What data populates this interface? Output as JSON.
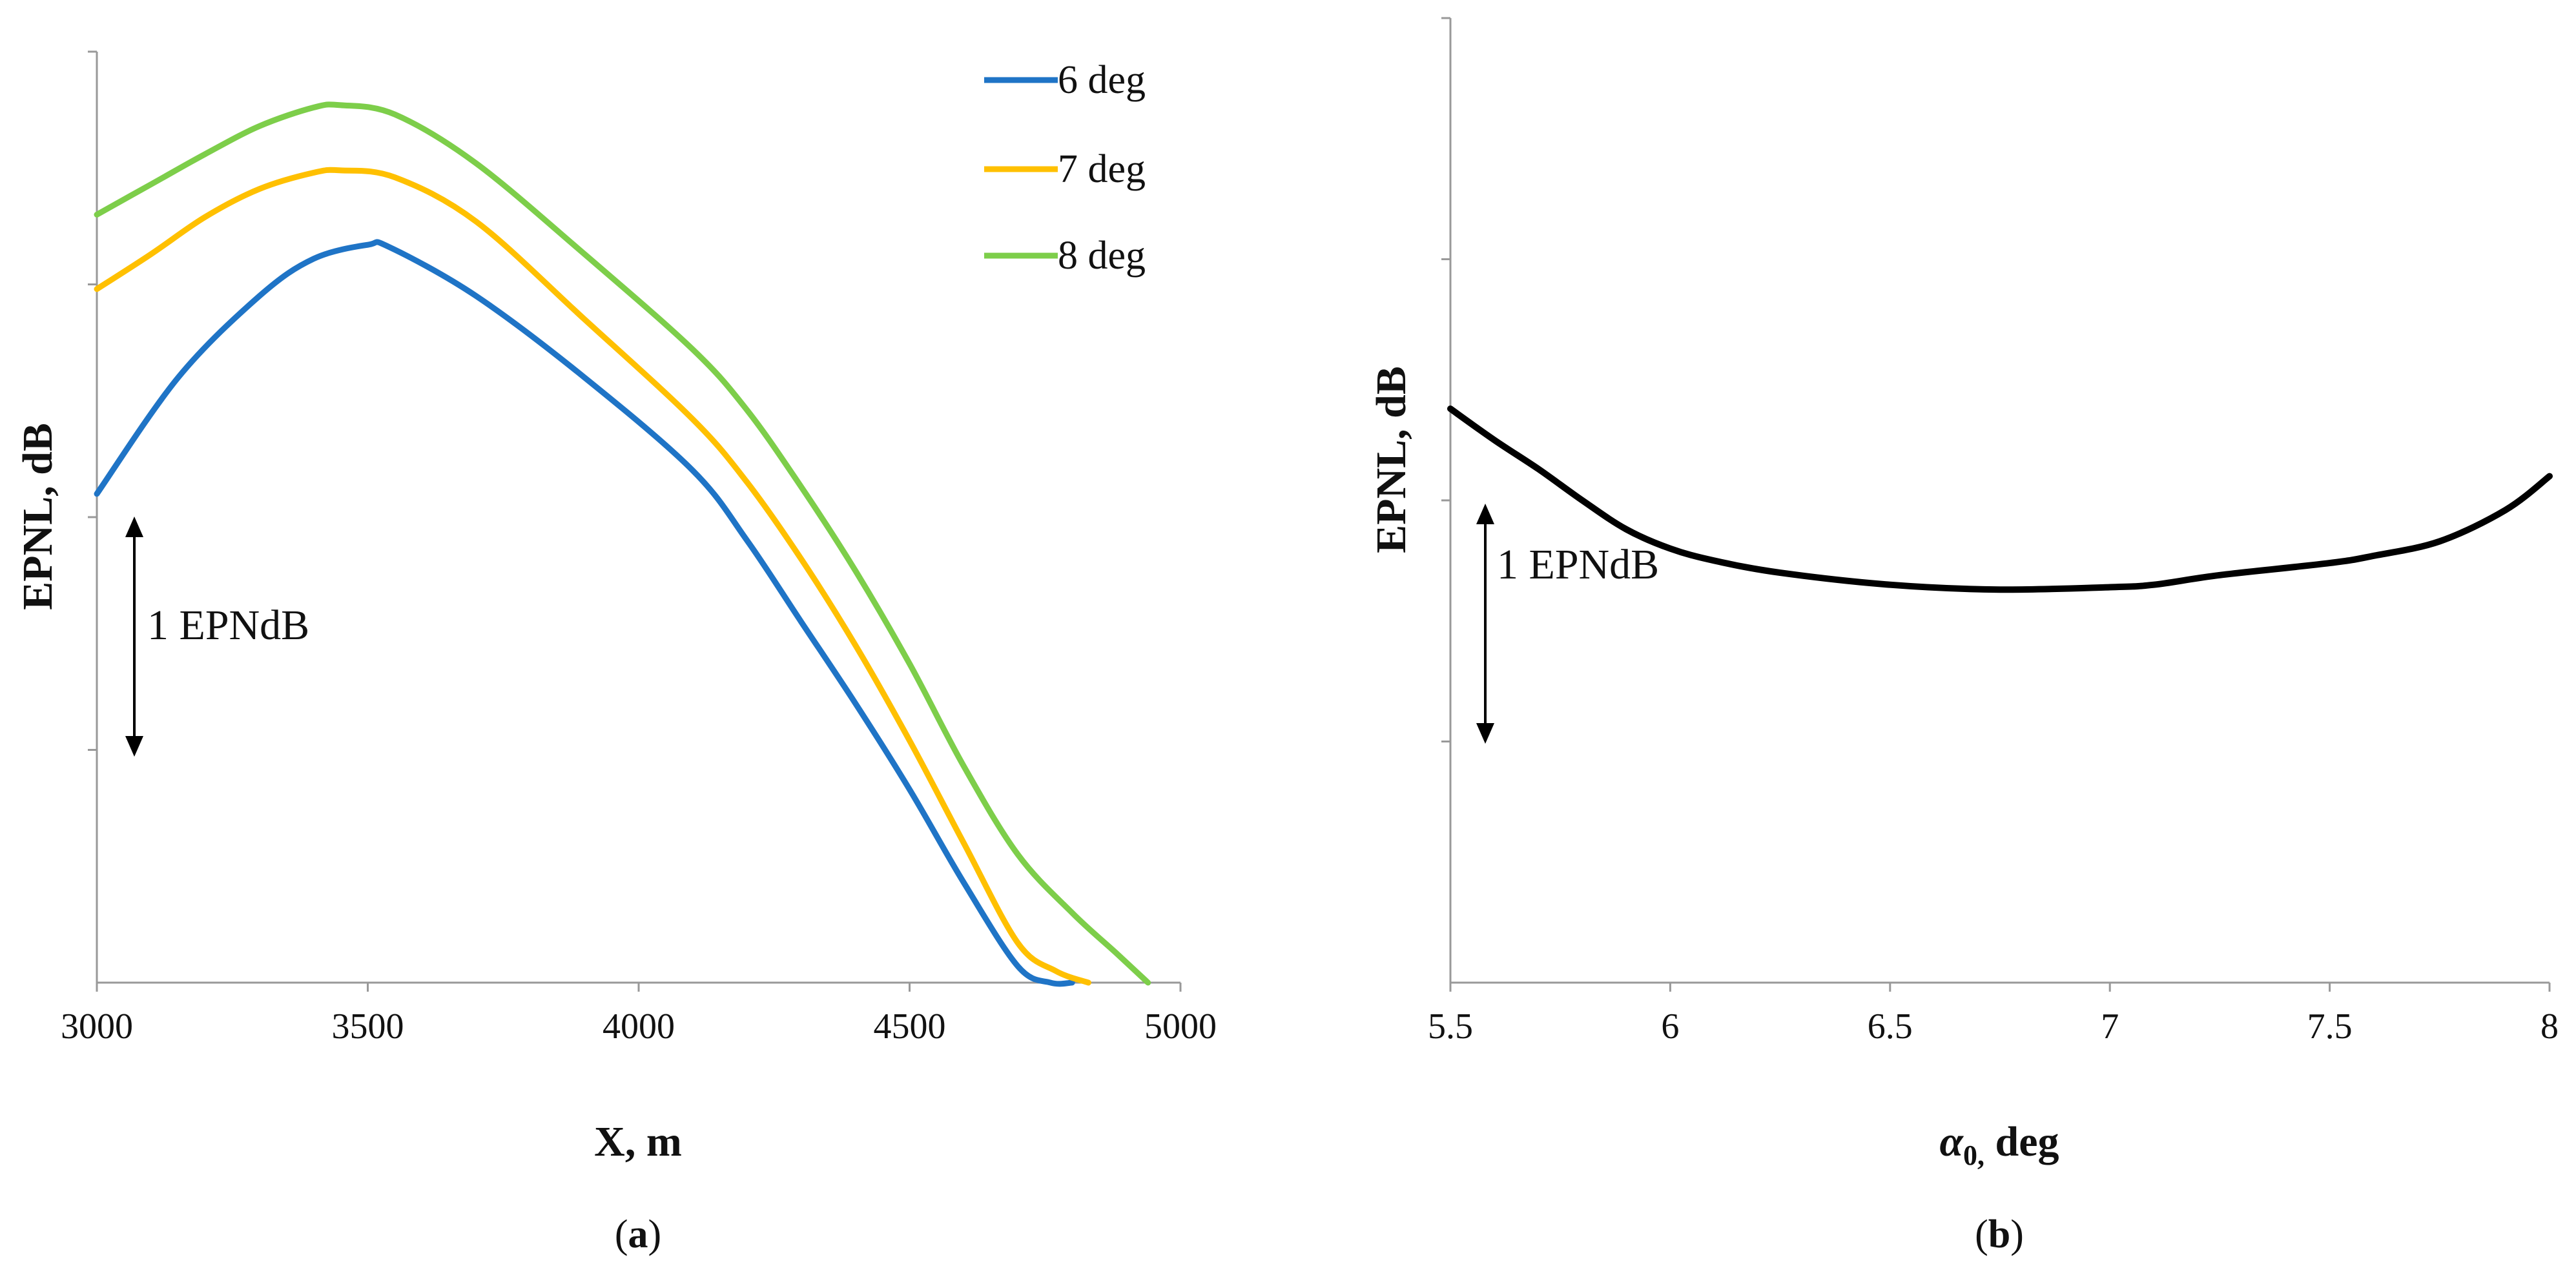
{
  "chart_data": [
    {
      "id": "a",
      "type": "line",
      "panel_label": "a",
      "xlabel": "X, m",
      "ylabel": "EPNL, dB",
      "xlim": [
        3000,
        5000
      ],
      "ylim": [
        0,
        4
      ],
      "x_ticks": [
        "3000",
        "3500",
        "4000",
        "4500",
        "5000"
      ],
      "y_tick_count": 4,
      "legend_position": "top-right",
      "annotation": "1 EPNdB",
      "series": [
        {
          "name": "6 deg",
          "color": "#1F74C6",
          "x": [
            3000,
            3150,
            3300,
            3400,
            3500,
            3540,
            3700,
            3900,
            4100,
            4200,
            4300,
            4400,
            4500,
            4600,
            4700,
            4760,
            4800
          ],
          "y": [
            2.1,
            2.6,
            2.95,
            3.11,
            3.17,
            3.16,
            2.95,
            2.6,
            2.2,
            1.9,
            1.55,
            1.2,
            0.83,
            0.43,
            0.07,
            0.0,
            0.0
          ]
        },
        {
          "name": "7 deg",
          "color": "#FFC000",
          "x": [
            3000,
            3100,
            3200,
            3300,
            3400,
            3450,
            3550,
            3700,
            3900,
            4100,
            4200,
            4300,
            4400,
            4500,
            4600,
            4700,
            4770,
            4830
          ],
          "y": [
            2.98,
            3.13,
            3.29,
            3.41,
            3.48,
            3.49,
            3.46,
            3.27,
            2.85,
            2.42,
            2.15,
            1.82,
            1.45,
            1.04,
            0.6,
            0.17,
            0.05,
            0.0
          ]
        },
        {
          "name": "8 deg",
          "color": "#7DCE4A",
          "x": [
            3000,
            3100,
            3200,
            3300,
            3400,
            3450,
            3550,
            3700,
            3900,
            4100,
            4200,
            4300,
            4400,
            4500,
            4600,
            4700,
            4800,
            4880,
            4940
          ],
          "y": [
            3.3,
            3.43,
            3.56,
            3.68,
            3.76,
            3.77,
            3.73,
            3.52,
            3.13,
            2.72,
            2.46,
            2.13,
            1.77,
            1.37,
            0.93,
            0.55,
            0.3,
            0.13,
            0.0
          ]
        }
      ]
    },
    {
      "id": "b",
      "type": "line",
      "panel_label": "b",
      "xlabel_symbol": "α",
      "xlabel_sub": "0,",
      "xlabel_rest": " deg",
      "ylabel": "EPNL, dB",
      "xlim": [
        5.5,
        8
      ],
      "ylim": [
        0,
        4
      ],
      "x_ticks": [
        "5.5",
        "6",
        "6.5",
        "7",
        "7.5",
        "8"
      ],
      "y_tick_count": 4,
      "annotation": "1 EPNdB",
      "series": [
        {
          "name": "EPNL",
          "color": "#000000",
          "x": [
            5.5,
            5.6,
            5.7,
            5.8,
            5.9,
            6.0,
            6.1,
            6.25,
            6.5,
            6.75,
            7.0,
            7.1,
            7.25,
            7.5,
            7.6,
            7.75,
            7.9,
            8.0
          ],
          "y": [
            2.38,
            2.25,
            2.13,
            2.0,
            1.88,
            1.8,
            1.75,
            1.7,
            1.65,
            1.63,
            1.64,
            1.65,
            1.69,
            1.74,
            1.77,
            1.83,
            1.96,
            2.1
          ]
        }
      ]
    }
  ]
}
